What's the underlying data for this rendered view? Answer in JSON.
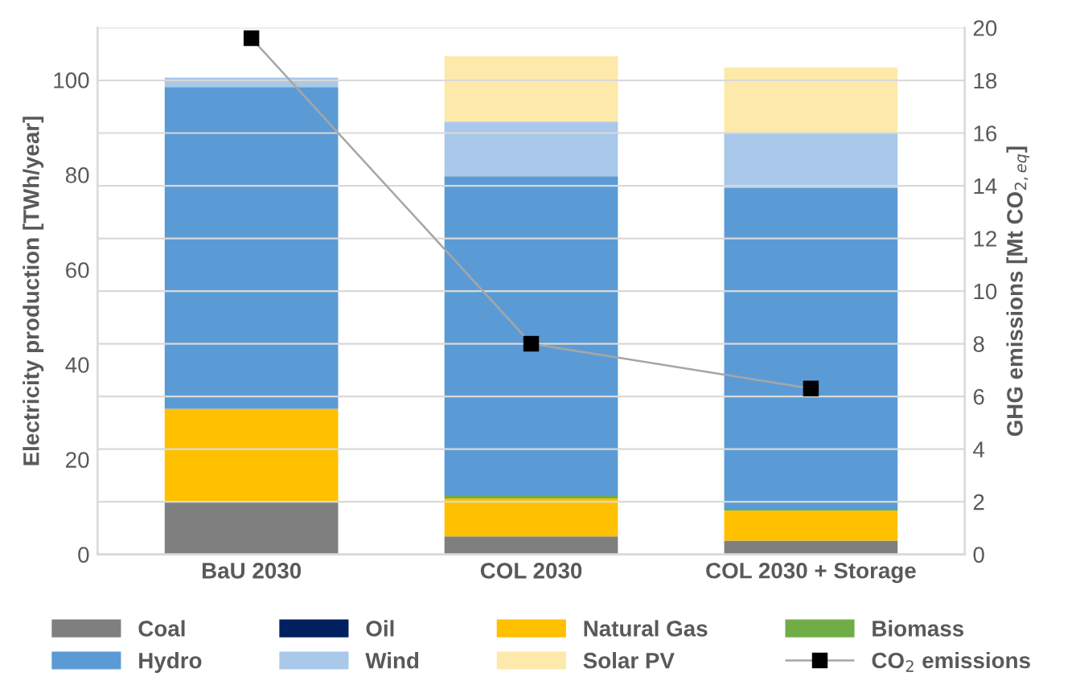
{
  "chart_data": {
    "type": "bar",
    "stacked": true,
    "categories": [
      "BaU 2030",
      "COL 2030",
      "COL 2030 + Storage"
    ],
    "ylabel": "Electricity production [TWh/year]",
    "y2label": "GHG emissions [Mt CO$_{2,eq}$]",
    "ylim": [
      0,
      111
    ],
    "yticks": [
      0,
      20,
      40,
      60,
      80,
      100
    ],
    "y2lim": [
      0,
      20
    ],
    "y2ticks": [
      0,
      2,
      4,
      6,
      8,
      10,
      12,
      14,
      16,
      18,
      20
    ],
    "grid": "y2",
    "legend": "bottom",
    "series": [
      {
        "name": "Coal",
        "color": "#7f7f7f",
        "values": [
          11,
          3.8,
          2.9
        ]
      },
      {
        "name": "Oil",
        "color": "#002060",
        "values": [
          0,
          0,
          0
        ]
      },
      {
        "name": "Natural Gas",
        "color": "#ffc000",
        "values": [
          19.7,
          8,
          6.3
        ]
      },
      {
        "name": "Biomass",
        "color": "#70ad47",
        "values": [
          0,
          0.5,
          0.4
        ]
      },
      {
        "name": "Hydro",
        "color": "#5b9bd5",
        "values": [
          67.8,
          67.4,
          67.6
        ]
      },
      {
        "name": "Wind",
        "color": "#a9c8ea",
        "values": [
          2,
          11.5,
          11.5
        ]
      },
      {
        "name": "Solar PV",
        "color": "#fde9a9",
        "values": [
          0,
          13.8,
          13.9
        ]
      },
      {
        "name": "CO$_{2}$ emissions",
        "type": "line",
        "axis": "y2",
        "color": "#a6a6a6",
        "marker": "square",
        "values": [
          19.6,
          8.0,
          6.3
        ]
      }
    ]
  }
}
